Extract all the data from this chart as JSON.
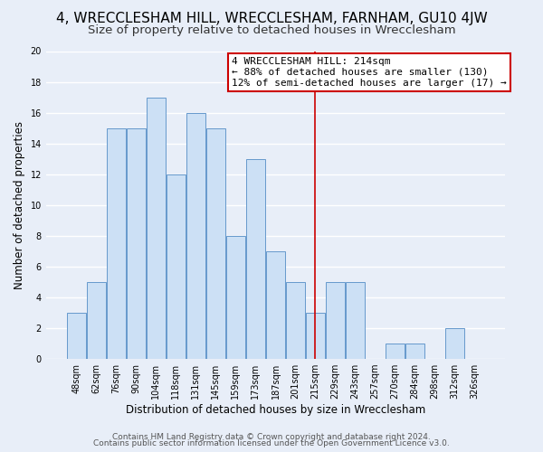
{
  "title": "4, WRECCLESHAM HILL, WRECCLESHAM, FARNHAM, GU10 4JW",
  "subtitle": "Size of property relative to detached houses in Wrecclesham",
  "xlabel": "Distribution of detached houses by size in Wrecclesham",
  "ylabel": "Number of detached properties",
  "bar_labels": [
    "48sqm",
    "62sqm",
    "76sqm",
    "90sqm",
    "104sqm",
    "118sqm",
    "131sqm",
    "145sqm",
    "159sqm",
    "173sqm",
    "187sqm",
    "201sqm",
    "215sqm",
    "229sqm",
    "243sqm",
    "257sqm",
    "270sqm",
    "284sqm",
    "298sqm",
    "312sqm",
    "326sqm"
  ],
  "bar_values": [
    3,
    5,
    15,
    15,
    17,
    12,
    16,
    15,
    8,
    13,
    7,
    5,
    3,
    5,
    5,
    0,
    1,
    1,
    0,
    2,
    0
  ],
  "bar_color": "#cce0f5",
  "bar_edge_color": "#6699cc",
  "vline_x": 12,
  "vline_color": "#cc0000",
  "annotation_line1": "4 WRECCLESHAM HILL: 214sqm",
  "annotation_line2": "← 88% of detached houses are smaller (130)",
  "annotation_line3": "12% of semi-detached houses are larger (17) →",
  "ylim": [
    0,
    20
  ],
  "yticks": [
    0,
    2,
    4,
    6,
    8,
    10,
    12,
    14,
    16,
    18,
    20
  ],
  "footer_line1": "Contains HM Land Registry data © Crown copyright and database right 2024.",
  "footer_line2": "Contains public sector information licensed under the Open Government Licence v3.0.",
  "background_color": "#e8eef8",
  "plot_bg_color": "#e8eef8",
  "grid_color": "#ffffff",
  "title_fontsize": 11,
  "subtitle_fontsize": 9.5,
  "axis_label_fontsize": 8.5,
  "tick_fontsize": 7,
  "footer_fontsize": 6.5,
  "ann_fontsize": 8
}
